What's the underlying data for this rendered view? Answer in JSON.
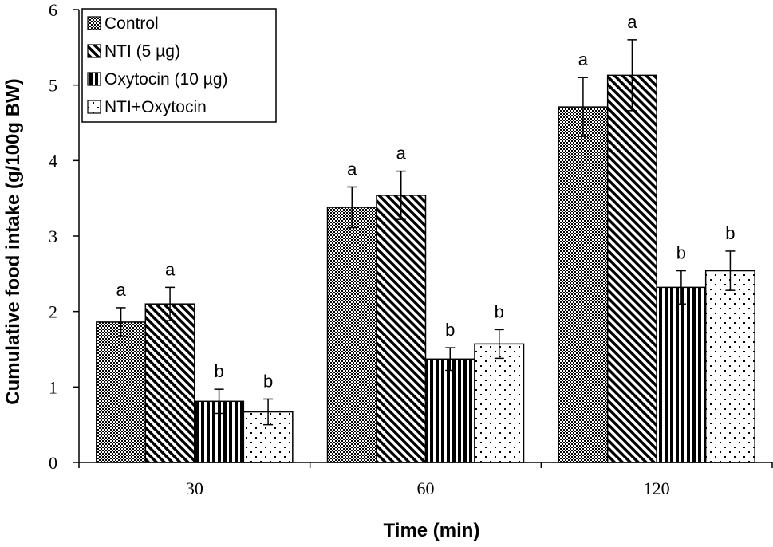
{
  "chart_data": {
    "type": "bar",
    "title": "",
    "xlabel": "Time (min)",
    "ylabel": "Cumulative food intake (g/100g BW)",
    "ylim": [
      0,
      6
    ],
    "yticks": [
      "0",
      "1",
      "2",
      "3",
      "4",
      "5",
      "6"
    ],
    "categories": [
      "30",
      "60",
      "120"
    ],
    "legend_position": "top-left",
    "series": [
      {
        "name": "Control",
        "pattern": "checker",
        "values": [
          1.86,
          3.38,
          4.71
        ],
        "errors": [
          0.19,
          0.27,
          0.39
        ],
        "labels": [
          "a",
          "a",
          "a"
        ]
      },
      {
        "name": "NTI  (5 µg)",
        "pattern": "diagonal",
        "values": [
          2.1,
          3.54,
          5.13
        ],
        "errors": [
          0.22,
          0.32,
          0.47
        ],
        "labels": [
          "a",
          "a",
          "a"
        ]
      },
      {
        "name": "Oxytocin (10 µg)",
        "pattern": "vertical",
        "values": [
          0.81,
          1.37,
          2.32
        ],
        "errors": [
          0.16,
          0.15,
          0.22
        ],
        "labels": [
          "b",
          "b",
          "b"
        ]
      },
      {
        "name": "NTI+Oxytocin",
        "pattern": "dots",
        "values": [
          0.67,
          1.57,
          2.54
        ],
        "errors": [
          0.17,
          0.19,
          0.26
        ],
        "labels": [
          "b",
          "b",
          "b"
        ]
      }
    ],
    "colors": {
      "ink": "#000000",
      "background": "#ffffff"
    }
  }
}
